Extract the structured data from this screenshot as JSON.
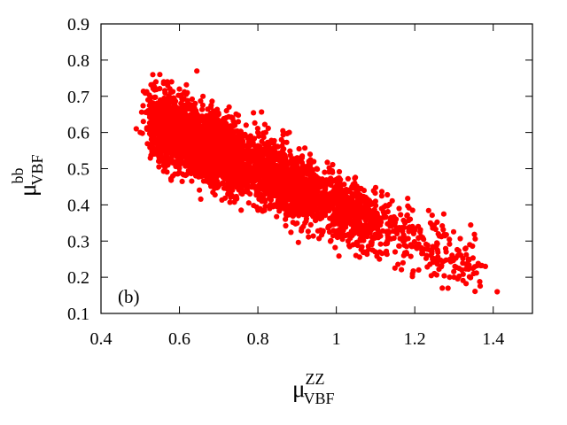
{
  "chart_data": {
    "type": "scatter",
    "title": "",
    "xlabel": {
      "main": "μ",
      "sup": "ZZ",
      "sub": "VBF"
    },
    "ylabel": {
      "main": "μ",
      "sup": "bb",
      "sub": "VBF"
    },
    "xlim": [
      0.4,
      1.5
    ],
    "ylim": [
      0.1,
      0.9
    ],
    "x_ticks": [
      0.4,
      0.6,
      0.8,
      1.0,
      1.2,
      1.4
    ],
    "x_tick_labels": [
      "0.4",
      "0.6",
      "0.8",
      "1",
      "1.2",
      "1.4"
    ],
    "y_ticks": [
      0.1,
      0.2,
      0.3,
      0.4,
      0.5,
      0.6,
      0.7,
      0.8,
      0.9
    ],
    "y_tick_labels": [
      "0.1",
      "0.2",
      "0.3",
      "0.4",
      "0.5",
      "0.6",
      "0.7",
      "0.8",
      "0.9"
    ],
    "panel_label": "(b)",
    "grid": false,
    "legend": "none",
    "point_color": "#ff0000",
    "band_centerline": [
      {
        "x": 0.5,
        "y": 0.64
      },
      {
        "x": 0.6,
        "y": 0.59
      },
      {
        "x": 0.7,
        "y": 0.55
      },
      {
        "x": 0.8,
        "y": 0.5
      },
      {
        "x": 0.9,
        "y": 0.45
      },
      {
        "x": 1.0,
        "y": 0.4
      },
      {
        "x": 1.1,
        "y": 0.35
      },
      {
        "x": 1.2,
        "y": 0.3
      },
      {
        "x": 1.3,
        "y": 0.25
      },
      {
        "x": 1.4,
        "y": 0.2
      }
    ],
    "points": [
      [
        0.49,
        0.61
      ],
      [
        0.5,
        0.6
      ],
      [
        0.52,
        0.66
      ],
      [
        0.52,
        0.69
      ],
      [
        0.53,
        0.73
      ],
      [
        0.54,
        0.74
      ],
      [
        0.55,
        0.76
      ],
      [
        0.56,
        0.74
      ],
      [
        0.57,
        0.73
      ],
      [
        0.58,
        0.74
      ],
      [
        0.53,
        0.55
      ],
      [
        0.54,
        0.57
      ],
      [
        0.55,
        0.52
      ],
      [
        0.56,
        0.56
      ],
      [
        0.57,
        0.51
      ],
      [
        0.58,
        0.53
      ],
      [
        0.6,
        0.49
      ],
      [
        0.6,
        0.72
      ],
      [
        0.62,
        0.71
      ],
      [
        0.63,
        0.52
      ],
      [
        0.64,
        0.68
      ],
      [
        0.65,
        0.5
      ],
      [
        0.66,
        0.7
      ],
      [
        0.67,
        0.47
      ],
      [
        0.68,
        0.67
      ],
      [
        0.69,
        0.48
      ],
      [
        0.7,
        0.65
      ],
      [
        0.71,
        0.46
      ],
      [
        0.72,
        0.66
      ],
      [
        0.73,
        0.45
      ],
      [
        0.75,
        0.63
      ],
      [
        0.76,
        0.43
      ],
      [
        0.77,
        0.62
      ],
      [
        0.78,
        0.43
      ],
      [
        0.8,
        0.6
      ],
      [
        0.81,
        0.41
      ],
      [
        0.82,
        0.6
      ],
      [
        0.83,
        0.39
      ],
      [
        0.84,
        0.57
      ],
      [
        0.85,
        0.4
      ],
      [
        0.86,
        0.58
      ],
      [
        0.87,
        0.36
      ],
      [
        0.88,
        0.6
      ],
      [
        0.89,
        0.38
      ],
      [
        0.9,
        0.53
      ],
      [
        0.92,
        0.35
      ],
      [
        0.93,
        0.52
      ],
      [
        0.94,
        0.37
      ],
      [
        0.95,
        0.5
      ],
      [
        0.96,
        0.33
      ],
      [
        0.97,
        0.49
      ],
      [
        0.98,
        0.34
      ],
      [
        1.0,
        0.47
      ],
      [
        1.01,
        0.32
      ],
      [
        1.02,
        0.44
      ],
      [
        1.03,
        0.3
      ],
      [
        1.04,
        0.45
      ],
      [
        1.05,
        0.26
      ],
      [
        1.06,
        0.42
      ],
      [
        1.07,
        0.27
      ],
      [
        1.08,
        0.4
      ],
      [
        1.09,
        0.29
      ],
      [
        1.1,
        0.41
      ],
      [
        1.11,
        0.25
      ],
      [
        1.12,
        0.38
      ],
      [
        1.13,
        0.3
      ],
      [
        1.14,
        0.36
      ],
      [
        1.15,
        0.27
      ],
      [
        1.16,
        0.39
      ],
      [
        1.17,
        0.24
      ],
      [
        1.18,
        0.37
      ],
      [
        1.19,
        0.29
      ],
      [
        1.2,
        0.33
      ],
      [
        1.21,
        0.22
      ],
      [
        1.22,
        0.31
      ],
      [
        1.23,
        0.26
      ],
      [
        1.24,
        0.35
      ],
      [
        1.25,
        0.21
      ],
      [
        1.26,
        0.32
      ],
      [
        1.27,
        0.17
      ],
      [
        1.28,
        0.27
      ],
      [
        1.29,
        0.25
      ],
      [
        1.3,
        0.2
      ],
      [
        1.31,
        0.26
      ],
      [
        1.32,
        0.22
      ],
      [
        1.33,
        0.28
      ],
      [
        1.34,
        0.29
      ],
      [
        1.35,
        0.21
      ],
      [
        1.38,
        0.23
      ],
      [
        1.41,
        0.16
      ]
    ]
  }
}
